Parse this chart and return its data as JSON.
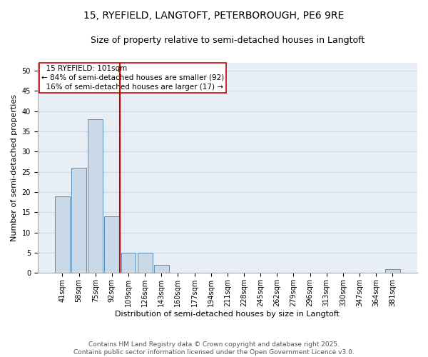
{
  "title1": "15, RYEFIELD, LANGTOFT, PETERBOROUGH, PE6 9RE",
  "title2": "Size of property relative to semi-detached houses in Langtoft",
  "xlabel": "Distribution of semi-detached houses by size in Langtoft",
  "ylabel": "Number of semi-detached properties",
  "categories": [
    "41sqm",
    "58sqm",
    "75sqm",
    "92sqm",
    "109sqm",
    "126sqm",
    "143sqm",
    "160sqm",
    "177sqm",
    "194sqm",
    "211sqm",
    "228sqm",
    "245sqm",
    "262sqm",
    "279sqm",
    "296sqm",
    "313sqm",
    "330sqm",
    "347sqm",
    "364sqm",
    "381sqm"
  ],
  "values": [
    19,
    26,
    38,
    14,
    5,
    5,
    2,
    0,
    0,
    0,
    0,
    0,
    0,
    0,
    0,
    0,
    0,
    0,
    0,
    0,
    1
  ],
  "bar_color": "#c9d9e8",
  "bar_edgecolor": "#5b8db8",
  "vline_x": 3.5,
  "vline_color": "#cc0000",
  "annotation_text": "  15 RYEFIELD: 101sqm\n← 84% of semi-detached houses are smaller (92)\n  16% of semi-detached houses are larger (17) →",
  "ylim": [
    0,
    52
  ],
  "yticks": [
    0,
    5,
    10,
    15,
    20,
    25,
    30,
    35,
    40,
    45,
    50
  ],
  "grid_color": "#d0d8e8",
  "background_color": "#e8eef5",
  "footer": "Contains HM Land Registry data © Crown copyright and database right 2025.\nContains public sector information licensed under the Open Government Licence v3.0.",
  "title_fontsize": 10,
  "subtitle_fontsize": 9,
  "axis_label_fontsize": 8,
  "tick_fontsize": 7,
  "annotation_fontsize": 7.5,
  "footer_fontsize": 6.5
}
